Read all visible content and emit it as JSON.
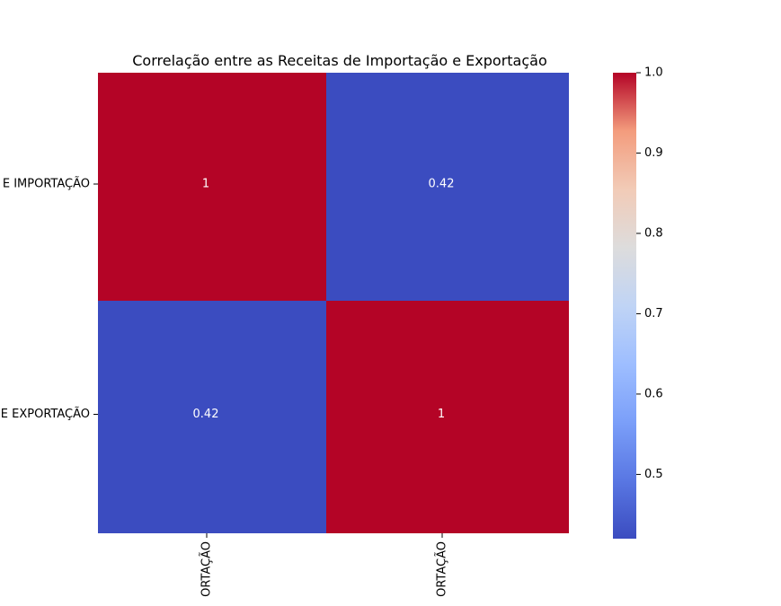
{
  "chart_data": {
    "type": "heatmap",
    "title": "Correlação entre as Receitas de Importação e Exportação",
    "row_labels": [
      "E IMPORTAÇÃO",
      "E EXPORTAÇÃO"
    ],
    "col_labels": [
      "ORTAÇÃO",
      "ORTAÇÃO"
    ],
    "values": [
      [
        1.0,
        0.42
      ],
      [
        0.42,
        1.0
      ]
    ],
    "cell_labels": [
      [
        "1",
        "0.42"
      ],
      [
        "0.42",
        "1"
      ]
    ],
    "colormap": "coolwarm",
    "vmin": 0.42,
    "vmax": 1.0,
    "colorbar": {
      "ticks": [
        0.5,
        0.6,
        0.7,
        0.8,
        0.9,
        1.0
      ],
      "tick_labels": [
        "0.5",
        "0.6",
        "0.7",
        "0.8",
        "0.9",
        "1.0"
      ]
    },
    "colors": {
      "low": "#3b4cc0",
      "mid": "#dddddd",
      "high": "#b40426"
    }
  }
}
